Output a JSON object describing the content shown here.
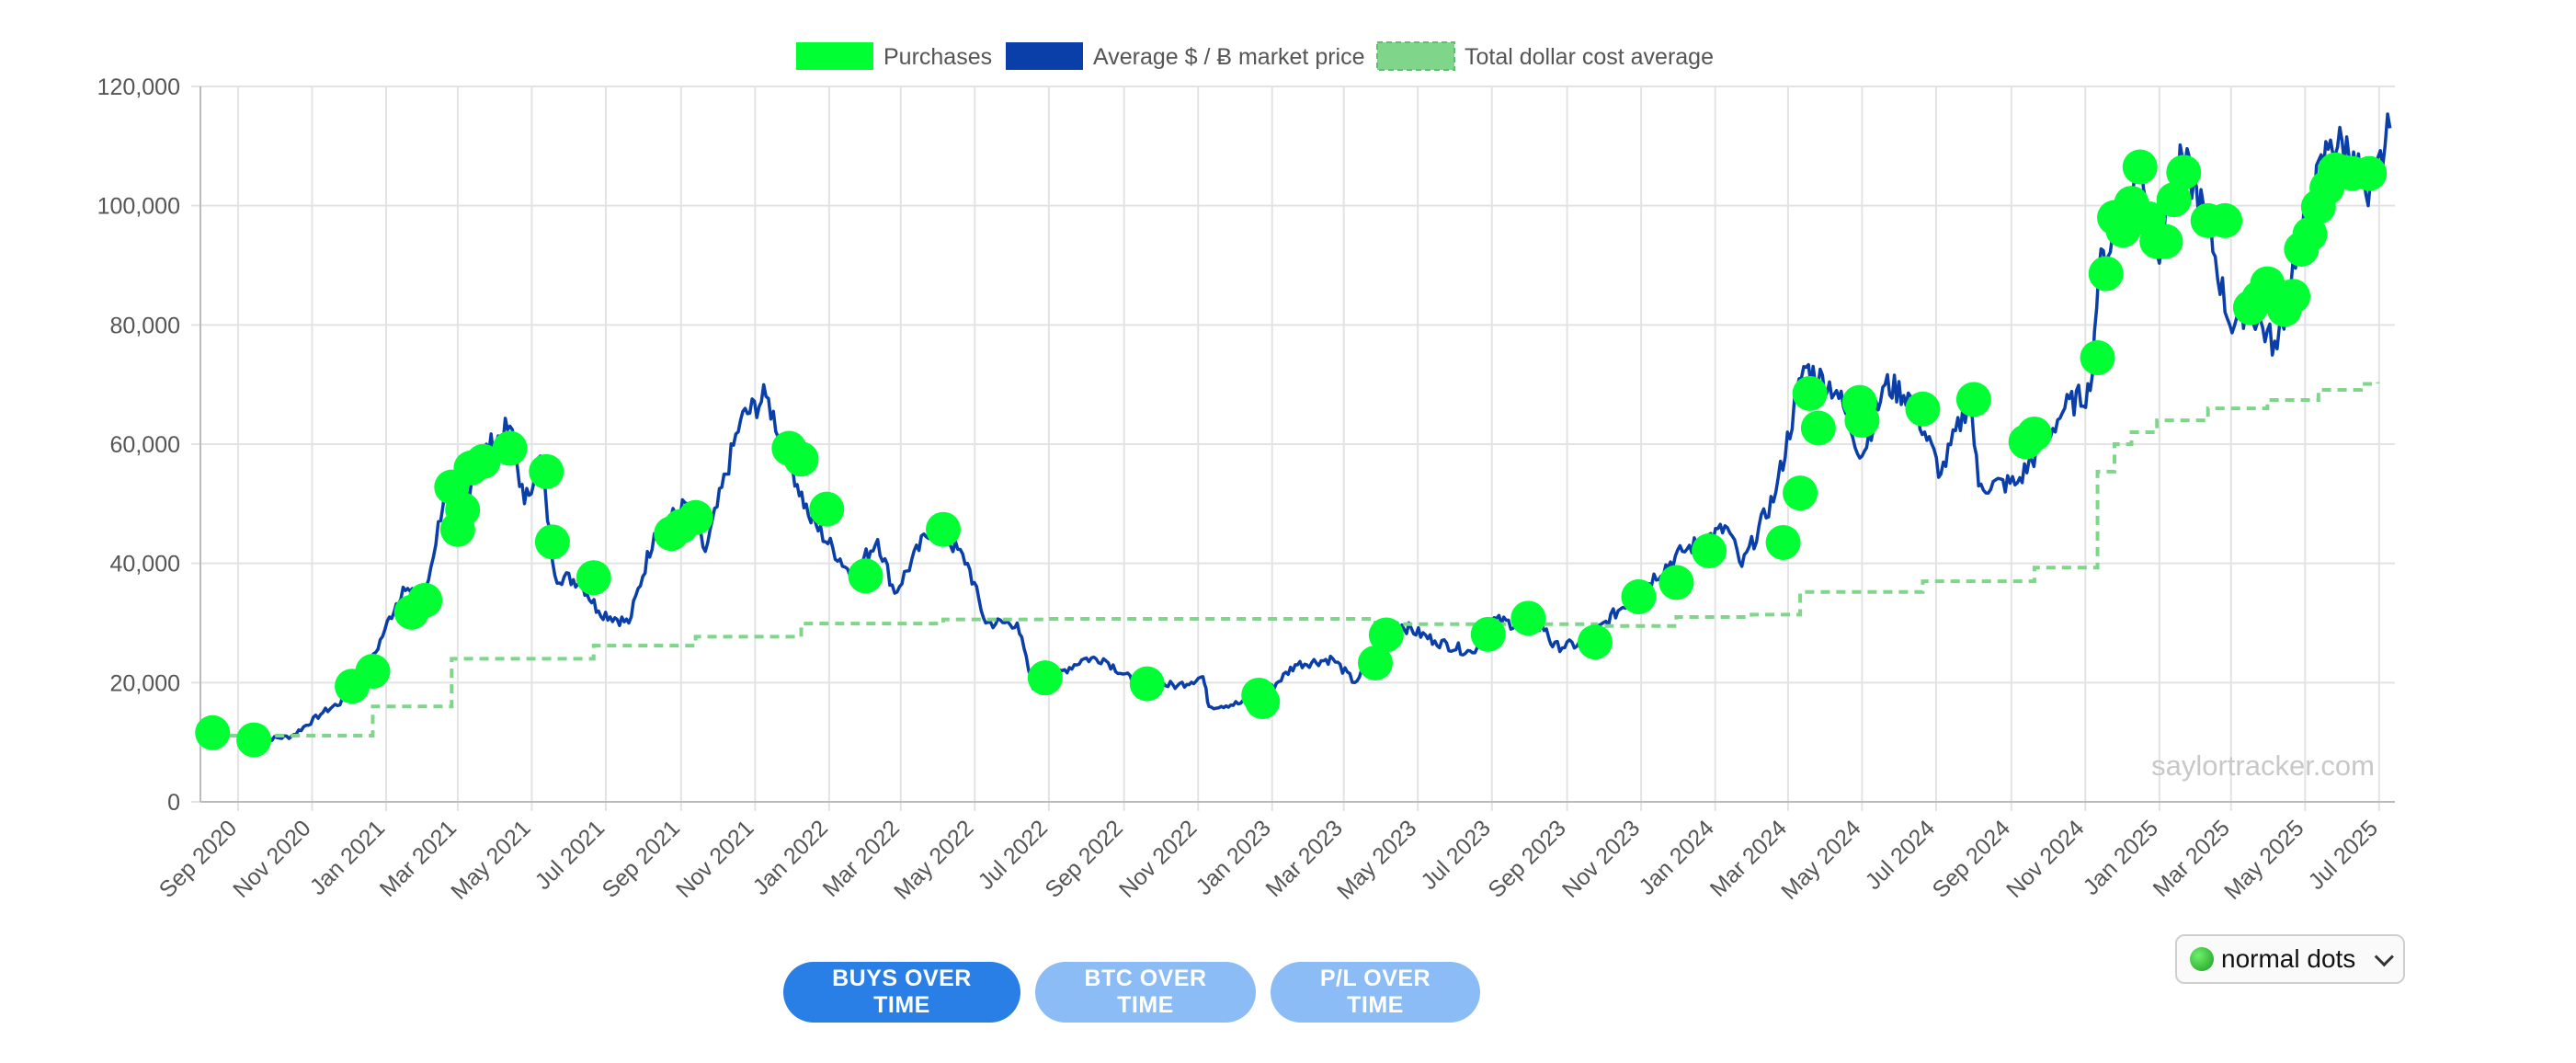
{
  "legend": {
    "purchases": "Purchases",
    "average": "Average $ / Ƀ market price",
    "cost_avg": "Total dollar cost average"
  },
  "watermark": "saylortracker.com",
  "buttons": {
    "buys": "BUYS OVER TIME",
    "btc": "BTC OVER TIME",
    "pl": "P/L OVER TIME"
  },
  "dot_select": {
    "value": "normal dots"
  },
  "colors": {
    "purchases": "#00ff33",
    "price": "#0a3ea8",
    "cost_avg": "#7fd68a",
    "grid": "#e3e3e3"
  },
  "chart_data": {
    "type": "line",
    "x_range": [
      "2020-08-01",
      "2025-07-14"
    ],
    "ylim": [
      0,
      120000
    ],
    "y_ticks": [
      0,
      20000,
      40000,
      60000,
      80000,
      100000,
      120000
    ],
    "y_tick_labels": [
      "0",
      "20,000",
      "40,000",
      "60,000",
      "80,000",
      "100,000",
      "120,000"
    ],
    "x_ticks": [
      "2020-09-01",
      "2020-11-01",
      "2021-01-01",
      "2021-03-01",
      "2021-05-01",
      "2021-07-01",
      "2021-09-01",
      "2021-11-01",
      "2022-01-01",
      "2022-03-01",
      "2022-05-01",
      "2022-07-01",
      "2022-09-01",
      "2022-11-01",
      "2023-01-01",
      "2023-03-01",
      "2023-05-01",
      "2023-07-01",
      "2023-09-01",
      "2023-11-01",
      "2024-01-01",
      "2024-03-01",
      "2024-05-01",
      "2024-07-01",
      "2024-09-01",
      "2024-11-01",
      "2025-01-01",
      "2025-03-01",
      "2025-05-01",
      "2025-07-01"
    ],
    "x_tick_labels": [
      "Sep 2020",
      "Nov 2020",
      "Jan 2021",
      "Mar 2021",
      "May 2021",
      "Jul 2021",
      "Sep 2021",
      "Nov 2021",
      "Jan 2022",
      "Mar 2022",
      "May 2022",
      "Jul 2022",
      "Sep 2022",
      "Nov 2022",
      "Jan 2023",
      "Mar 2023",
      "May 2023",
      "Jul 2023",
      "Sep 2023",
      "Nov 2023",
      "Jan 2024",
      "Mar 2024",
      "May 2024",
      "Jul 2024",
      "Sep 2024",
      "Nov 2024",
      "Jan 2025",
      "Mar 2025",
      "May 2025",
      "Jul 2025"
    ],
    "legend_position": "top",
    "grid": true,
    "series": [
      {
        "name": "Average $ / Ƀ market price",
        "style": "line",
        "points": [
          [
            "2020-09-15",
            10300
          ],
          [
            "2020-10-15",
            11000
          ],
          [
            "2020-11-10",
            15000
          ],
          [
            "2020-12-10",
            18500
          ],
          [
            "2020-12-31",
            28900
          ],
          [
            "2021-01-15",
            36000
          ],
          [
            "2021-02-01",
            33000
          ],
          [
            "2021-02-21",
            55000
          ],
          [
            "2021-03-05",
            48000
          ],
          [
            "2021-03-15",
            57000
          ],
          [
            "2021-04-13",
            63000
          ],
          [
            "2021-04-25",
            50000
          ],
          [
            "2021-05-08",
            58000
          ],
          [
            "2021-05-20",
            38000
          ],
          [
            "2021-06-10",
            37000
          ],
          [
            "2021-06-25",
            32000
          ],
          [
            "2021-07-20",
            30000
          ],
          [
            "2021-08-10",
            45000
          ],
          [
            "2021-09-06",
            50000
          ],
          [
            "2021-09-21",
            42000
          ],
          [
            "2021-10-20",
            64000
          ],
          [
            "2021-11-10",
            68000
          ],
          [
            "2021-11-30",
            57000
          ],
          [
            "2021-12-15",
            48000
          ],
          [
            "2022-01-20",
            38000
          ],
          [
            "2022-02-10",
            44000
          ],
          [
            "2022-02-24",
            35000
          ],
          [
            "2022-03-28",
            47000
          ],
          [
            "2022-04-25",
            40000
          ],
          [
            "2022-05-10",
            30000
          ],
          [
            "2022-06-05",
            30000
          ],
          [
            "2022-06-18",
            19000
          ],
          [
            "2022-07-30",
            24000
          ],
          [
            "2022-08-15",
            24000
          ],
          [
            "2022-09-10",
            20000
          ],
          [
            "2022-10-15",
            19500
          ],
          [
            "2022-11-05",
            21000
          ],
          [
            "2022-11-10",
            16000
          ],
          [
            "2022-12-20",
            16800
          ],
          [
            "2023-01-20",
            23000
          ],
          [
            "2023-02-20",
            24000
          ],
          [
            "2023-03-10",
            20000
          ],
          [
            "2023-04-14",
            30000
          ],
          [
            "2023-05-15",
            27000
          ],
          [
            "2023-06-15",
            25000
          ],
          [
            "2023-07-01",
            30500
          ],
          [
            "2023-08-15",
            29000
          ],
          [
            "2023-08-20",
            26000
          ],
          [
            "2023-09-15",
            26500
          ],
          [
            "2023-10-25",
            34500
          ],
          [
            "2023-12-05",
            42000
          ],
          [
            "2024-01-11",
            46000
          ],
          [
            "2024-01-23",
            39500
          ],
          [
            "2024-02-20",
            52000
          ],
          [
            "2024-03-14",
            73000
          ],
          [
            "2024-04-10",
            69000
          ],
          [
            "2024-05-01",
            58000
          ],
          [
            "2024-05-20",
            70000
          ],
          [
            "2024-06-10",
            68000
          ],
          [
            "2024-07-05",
            55000
          ],
          [
            "2024-07-29",
            68000
          ],
          [
            "2024-08-05",
            53000
          ],
          [
            "2024-09-06",
            53500
          ],
          [
            "2024-10-15",
            66000
          ],
          [
            "2024-11-05",
            69000
          ],
          [
            "2024-11-12",
            89000
          ],
          [
            "2024-12-05",
            100000
          ],
          [
            "2024-12-17",
            107000
          ],
          [
            "2024-12-30",
            92000
          ],
          [
            "2025-01-20",
            108000
          ],
          [
            "2025-02-10",
            97000
          ],
          [
            "2025-02-28",
            80000
          ],
          [
            "2025-03-15",
            83000
          ],
          [
            "2025-04-08",
            76000
          ],
          [
            "2025-04-25",
            94000
          ],
          [
            "2025-05-22",
            111000
          ],
          [
            "2025-06-10",
            109000
          ],
          [
            "2025-06-22",
            100000
          ],
          [
            "2025-07-10",
            113000
          ]
        ]
      },
      {
        "name": "Total dollar cost average",
        "style": "step-dashed",
        "points": [
          [
            "2020-08-11",
            11100
          ],
          [
            "2020-12-21",
            16000
          ],
          [
            "2021-02-24",
            24000
          ],
          [
            "2021-06-21",
            26200
          ],
          [
            "2021-09-13",
            27700
          ],
          [
            "2021-12-09",
            29900
          ],
          [
            "2022-04-05",
            30600
          ],
          [
            "2022-06-28",
            30700
          ],
          [
            "2023-03-27",
            29800
          ],
          [
            "2023-09-25",
            29500
          ],
          [
            "2023-11-30",
            31000
          ],
          [
            "2024-01-31",
            31400
          ],
          [
            "2024-03-11",
            35200
          ],
          [
            "2024-06-20",
            37000
          ],
          [
            "2024-09-20",
            39300
          ],
          [
            "2024-11-11",
            55400
          ],
          [
            "2024-11-25",
            60000
          ],
          [
            "2024-12-09",
            62000
          ],
          [
            "2024-12-30",
            64000
          ],
          [
            "2025-02-10",
            66000
          ],
          [
            "2025-03-31",
            67400
          ],
          [
            "2025-05-12",
            69100
          ],
          [
            "2025-06-16",
            70100
          ],
          [
            "2025-06-30",
            70400
          ]
        ]
      },
      {
        "name": "Purchases",
        "style": "dots",
        "points": [
          [
            "2020-08-11",
            11600
          ],
          [
            "2020-09-14",
            10400
          ],
          [
            "2020-12-04",
            19400
          ],
          [
            "2020-12-21",
            21900
          ],
          [
            "2021-01-22",
            31800
          ],
          [
            "2021-02-02",
            33800
          ],
          [
            "2021-02-24",
            52800
          ],
          [
            "2021-03-01",
            45700
          ],
          [
            "2021-03-05",
            49000
          ],
          [
            "2021-03-12",
            56000
          ],
          [
            "2021-03-22",
            57100
          ],
          [
            "2021-04-13",
            59300
          ],
          [
            "2021-05-13",
            55400
          ],
          [
            "2021-05-18",
            43600
          ],
          [
            "2021-06-21",
            37600
          ],
          [
            "2021-08-24",
            45000
          ],
          [
            "2021-09-01",
            46200
          ],
          [
            "2021-09-13",
            47700
          ],
          [
            "2021-11-29",
            59300
          ],
          [
            "2021-12-09",
            57500
          ],
          [
            "2021-12-30",
            49100
          ],
          [
            "2022-01-31",
            37900
          ],
          [
            "2022-04-05",
            45700
          ],
          [
            "2022-06-28",
            20800
          ],
          [
            "2022-09-20",
            19800
          ],
          [
            "2022-12-21",
            17900
          ],
          [
            "2022-12-24",
            16800
          ],
          [
            "2023-03-27",
            23300
          ],
          [
            "2023-04-05",
            28000
          ],
          [
            "2023-06-28",
            28100
          ],
          [
            "2023-07-31",
            30800
          ],
          [
            "2023-09-24",
            26800
          ],
          [
            "2023-10-30",
            34400
          ],
          [
            "2023-11-30",
            36800
          ],
          [
            "2023-12-27",
            42100
          ],
          [
            "2024-02-26",
            43500
          ],
          [
            "2024-03-11",
            51800
          ],
          [
            "2024-03-19",
            68500
          ],
          [
            "2024-03-26",
            62700
          ],
          [
            "2024-04-29",
            67000
          ],
          [
            "2024-05-01",
            64000
          ],
          [
            "2024-06-20",
            65900
          ],
          [
            "2024-08-01",
            67500
          ],
          [
            "2024-09-13",
            60400
          ],
          [
            "2024-09-20",
            61700
          ],
          [
            "2024-11-11",
            74500
          ],
          [
            "2024-11-18",
            88600
          ],
          [
            "2024-11-25",
            98000
          ],
          [
            "2024-12-02",
            95900
          ],
          [
            "2024-12-09",
            100400
          ],
          [
            "2024-12-16",
            106500
          ],
          [
            "2024-12-23",
            97800
          ],
          [
            "2024-12-30",
            94000
          ],
          [
            "2025-01-06",
            94000
          ],
          [
            "2025-01-13",
            101000
          ],
          [
            "2025-01-21",
            105600
          ],
          [
            "2025-02-10",
            97500
          ],
          [
            "2025-02-24",
            97500
          ],
          [
            "2025-03-17",
            82900
          ],
          [
            "2025-03-24",
            84500
          ],
          [
            "2025-03-31",
            86900
          ],
          [
            "2025-04-14",
            82600
          ],
          [
            "2025-04-21",
            84800
          ],
          [
            "2025-04-28",
            92700
          ],
          [
            "2025-05-05",
            95200
          ],
          [
            "2025-05-12",
            99800
          ],
          [
            "2025-05-19",
            103000
          ],
          [
            "2025-05-26",
            106000
          ],
          [
            "2025-06-02",
            105600
          ],
          [
            "2025-06-09",
            105400
          ],
          [
            "2025-06-23",
            105400
          ]
        ]
      }
    ]
  }
}
